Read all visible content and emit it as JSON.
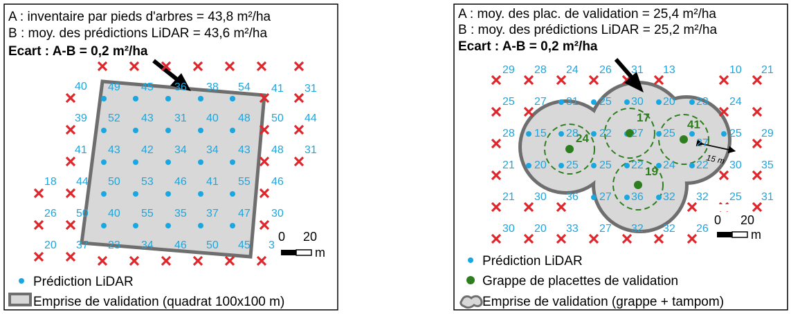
{
  "left_panel": {
    "line_a": "A : inventaire par pieds d'arbres = 43,8 m²/ha",
    "line_b": "B : moy. des prédictions LiDAR = 43,6 m²/ha",
    "ecart": "Ecart : A-B = 0,2 m²/ha",
    "legend_points": "Prédiction LiDAR",
    "legend_quadrat": "Emprise de validation (quadrat 100x100 m)",
    "scale_value_0": "0",
    "scale_value_20": "20",
    "scale_unit": "m",
    "labels": {
      "outer_top": [
        "40",
        "31"
      ],
      "outer_row1_right": "41",
      "r1": [
        "49",
        "45",
        "36",
        "38",
        "54"
      ],
      "r2_left": "39",
      "r2": [
        "52",
        "43",
        "31",
        "40",
        "48"
      ],
      "r2_right": [
        "50",
        "44"
      ],
      "r3_left": "41",
      "r3": [
        "43",
        "42",
        "34",
        "34",
        "43"
      ],
      "r3_right": [
        "48",
        "31"
      ],
      "r4_left": [
        "18",
        "44"
      ],
      "r4": [
        "50",
        "53",
        "46",
        "41",
        "55"
      ],
      "r4_right": "46",
      "r5_left": [
        "26",
        "50"
      ],
      "r5": [
        "40",
        "55",
        "35",
        "37",
        "47"
      ],
      "r5_right": "30",
      "r6_left": [
        "20",
        "37"
      ],
      "r6": [
        "23",
        "34",
        "46",
        "50",
        "45"
      ],
      "r6_right": "3"
    }
  },
  "right_panel": {
    "line_a": "A : moy. des plac. de validation = 25,4 m²/ha",
    "line_b": "B : moy. des prédictions LiDAR = 25,2 m²/ha",
    "ecart": "Ecart : A-B = 0,2 m²/ha",
    "legend_points": "Prédiction LiDAR",
    "legend_clusters": "Grappe de placettes de validation",
    "legend_footprint": "Emprise de validation (grappe + tampom)",
    "buffer_label": "15 m",
    "scale_value_0": "0",
    "scale_value_20": "20",
    "scale_unit": "m",
    "cluster_values": [
      "24",
      "17",
      "41",
      "19"
    ],
    "labels": {
      "r0": [
        "29",
        "28",
        "24",
        "26",
        "31",
        "13",
        "10",
        "21"
      ],
      "r1": [
        "25",
        "27",
        "31",
        "25",
        "30",
        "20",
        "23",
        "24"
      ],
      "r2": [
        "28",
        "15",
        "28",
        "22",
        "27",
        "25",
        "27",
        "25",
        "29"
      ],
      "r3": [
        "21",
        "20",
        "25",
        "25",
        "22",
        "24",
        "22",
        "30",
        "35"
      ],
      "r4": [
        "21",
        "30",
        "36",
        "27",
        "36",
        "32",
        "32",
        "25",
        "31"
      ],
      "r5": [
        "30",
        "20",
        "33",
        "27",
        "32",
        "32",
        "26"
      ]
    }
  },
  "colors": {
    "lidar_point": "#1aa7e0",
    "cross": "#e0262b",
    "cluster": "#2e7d1e",
    "footprint_fill": "#d8d8d8",
    "footprint_stroke": "#6e6e6e"
  }
}
